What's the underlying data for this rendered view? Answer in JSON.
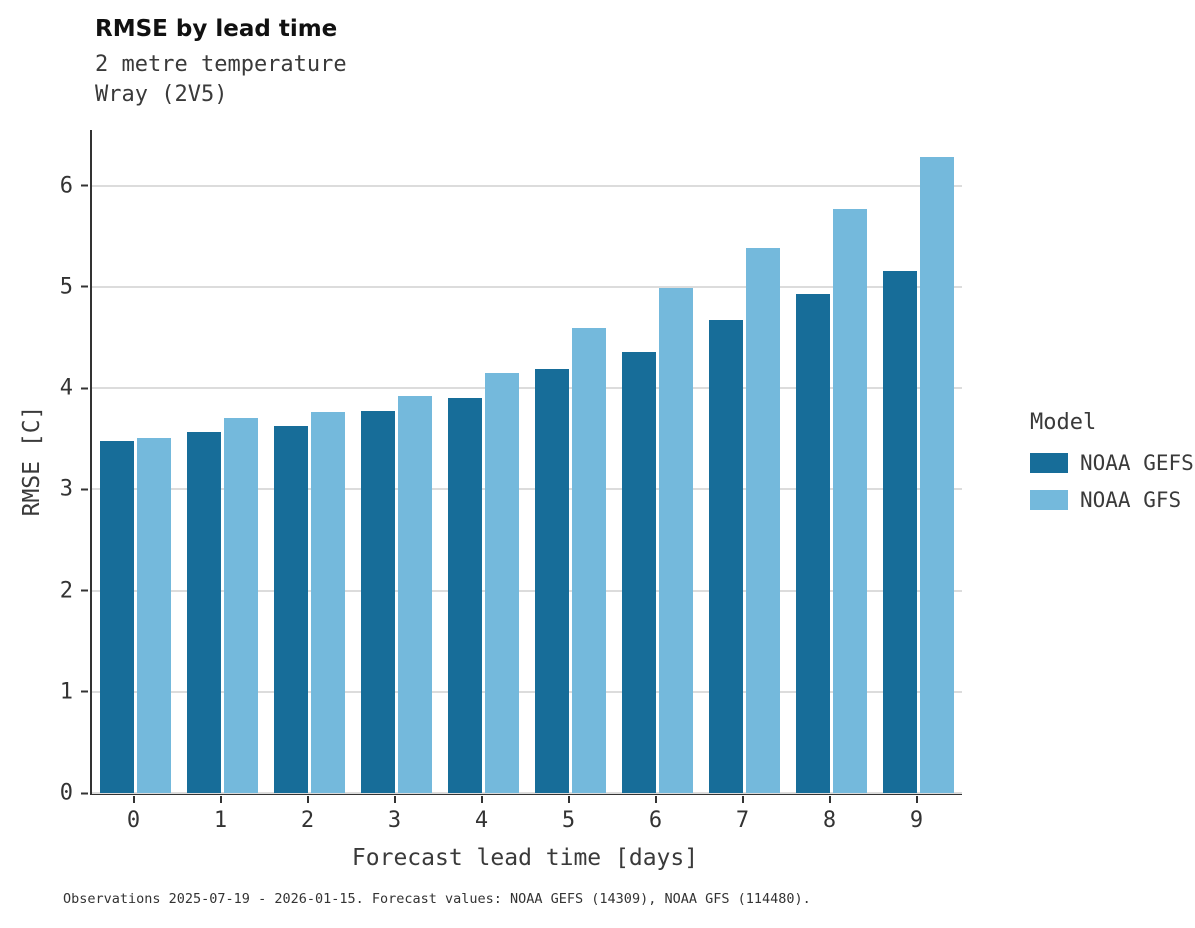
{
  "title": "RMSE by lead time",
  "subtitle_line1": "2 metre temperature",
  "subtitle_line2": "Wray (2V5)",
  "caption": "Observations 2025-07-19 - 2026-01-15. Forecast values: NOAA GEFS (14309), NOAA GFS (114480).",
  "legend": {
    "title": "Model",
    "entries": [
      {
        "label": "NOAA GEFS",
        "color": "#176d99"
      },
      {
        "label": "NOAA GFS",
        "color": "#74b9dc"
      }
    ]
  },
  "chart_data": {
    "type": "bar",
    "title": "RMSE by lead time",
    "subtitle": [
      "2 metre temperature",
      "Wray (2V5)"
    ],
    "xlabel": "Forecast lead time [days]",
    "ylabel": "RMSE [C]",
    "categories": [
      "0",
      "1",
      "2",
      "3",
      "4",
      "5",
      "6",
      "7",
      "8",
      "9"
    ],
    "series": [
      {
        "name": "NOAA GEFS",
        "color": "#176d99",
        "values": [
          3.48,
          3.57,
          3.63,
          3.77,
          3.9,
          4.19,
          4.36,
          4.67,
          4.93,
          5.16
        ]
      },
      {
        "name": "NOAA GFS",
        "color": "#74b9dc",
        "values": [
          3.51,
          3.7,
          3.76,
          3.92,
          4.15,
          4.59,
          4.99,
          5.38,
          5.77,
          6.28
        ]
      }
    ],
    "ylim": [
      0,
      6.55
    ],
    "yticks": [
      0,
      1,
      2,
      3,
      4,
      5,
      6
    ],
    "grid": true,
    "legend_position": "right"
  }
}
